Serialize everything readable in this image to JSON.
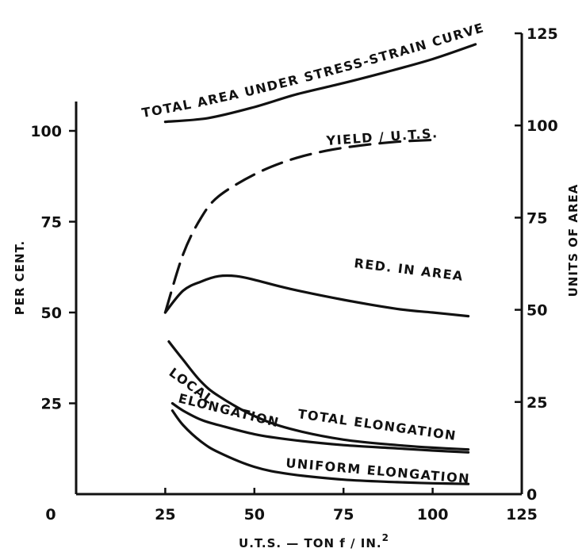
{
  "chart_data": {
    "type": "line",
    "title": "",
    "xlabel": "U.T.S. — TON f / IN.",
    "xlabel_sup": "2",
    "ylabel_left": "PER CENT.",
    "ylabel_right": "UNITS OF AREA",
    "xlim": [
      0,
      125
    ],
    "ylim_left": [
      0,
      108
    ],
    "ylim_right": [
      0,
      125
    ],
    "x_ticks": [
      "0",
      "25",
      "50",
      "75",
      "100",
      "125"
    ],
    "y_ticks_left": [
      "25",
      "50",
      "75",
      "100"
    ],
    "y_ticks_right": [
      "0",
      "25",
      "50",
      "75",
      "100",
      "125"
    ],
    "grid": false,
    "series": [
      {
        "name": "TOTAL AREA UNDER STRESS-STRAIN CURVE",
        "axis": "right",
        "style": "solid",
        "x": [
          25,
          37,
          50,
          62,
          75,
          87,
          100,
          112
        ],
        "y": [
          101,
          102,
          105,
          108.5,
          111.5,
          114.5,
          118,
          122
        ]
      },
      {
        "name": "YIELD / U.T.S.",
        "axis": "left",
        "style": "dashed",
        "x": [
          25,
          30,
          35,
          40,
          50,
          60,
          70,
          80,
          90,
          100
        ],
        "y": [
          50,
          66,
          76,
          82,
          88,
          92,
          94.5,
          96,
          97,
          97.5
        ]
      },
      {
        "name": "RED. IN AREA",
        "axis": "left",
        "style": "solid",
        "x": [
          25,
          30,
          35,
          40,
          45,
          50,
          60,
          75,
          90,
          100,
          110
        ],
        "y": [
          50,
          56,
          58.5,
          60,
          60,
          59,
          56.5,
          53.5,
          51,
          50,
          49
        ]
      },
      {
        "name": "TOTAL ELONGATION",
        "axis": "left",
        "style": "solid",
        "x": [
          26,
          30,
          35,
          40,
          50,
          60,
          75,
          90,
          100,
          110
        ],
        "y": [
          42,
          37,
          31,
          27,
          21.5,
          18,
          15,
          13.5,
          12.8,
          12.3
        ]
      },
      {
        "name": "LOCAL ELONGATION",
        "axis": "left",
        "style": "solid",
        "x": [
          27,
          30,
          35,
          40,
          50,
          60,
          75,
          90,
          100,
          110
        ],
        "y": [
          25,
          23,
          20.5,
          19,
          16.5,
          15,
          13.5,
          12.6,
          12,
          11.5
        ]
      },
      {
        "name": "UNIFORM ELONGATION",
        "axis": "left",
        "style": "solid",
        "x": [
          27,
          30,
          35,
          40,
          50,
          60,
          75,
          90,
          100,
          110
        ],
        "y": [
          23,
          19,
          14.5,
          11.5,
          7.5,
          5.5,
          4,
          3.3,
          3,
          2.8
        ]
      }
    ],
    "labels": {
      "total_area_line1": "TOTAL AREA UNDER STRESS-STRAIN CURVE",
      "yield": "YIELD / U.T.S.",
      "red_area": "RED. IN AREA",
      "total_elong": "TOTAL ELONGATION",
      "local": "LOCAL",
      "elongation": "ELONGATION",
      "uniform_elong": "UNIFORM ELONGATION"
    }
  }
}
